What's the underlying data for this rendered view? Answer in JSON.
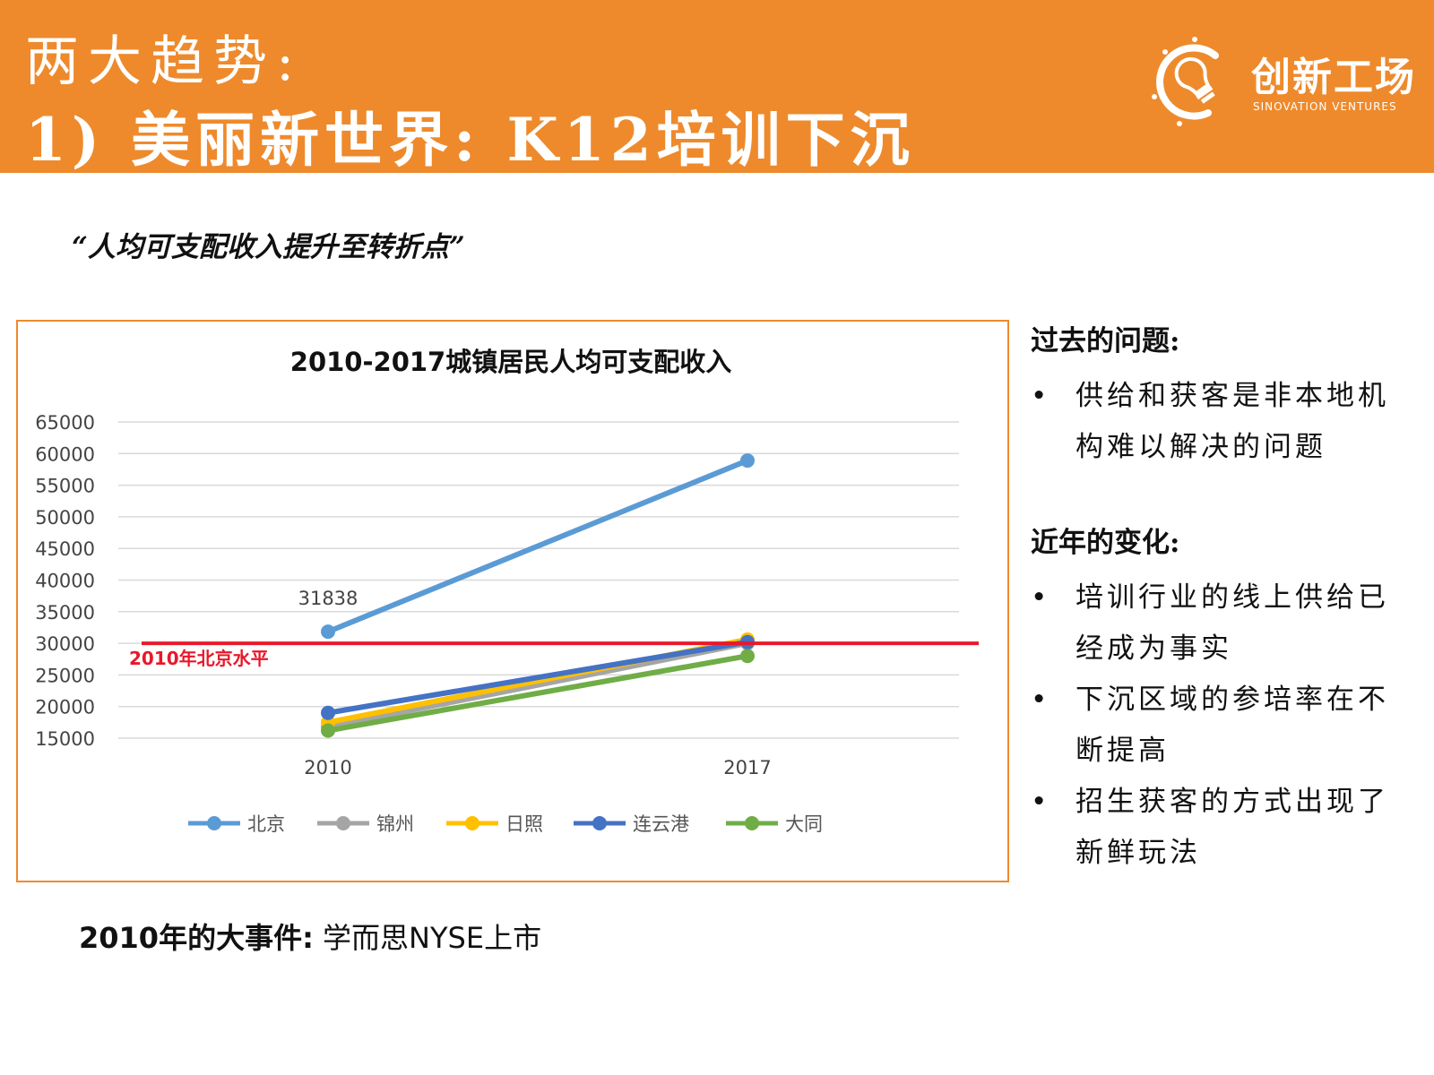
{
  "header": {
    "title_line1": "两大趋势:",
    "title_line2": "1) 美丽新世界: K12培训下沉",
    "logo_name": "创新工场",
    "logo_sub": "SINOVATION VENTURES",
    "logo_icon": "lightbulb-icon",
    "background_color": "#ee8a2c"
  },
  "quote": "“人均可支配收入提升至转折点”",
  "chart_data": {
    "type": "line",
    "title": "2010-2017城镇居民人均可支配收入",
    "categories": [
      "2010",
      "2017"
    ],
    "ylim": [
      15000,
      65000
    ],
    "yticks": [
      "65000",
      "60000",
      "55000",
      "50000",
      "45000",
      "40000",
      "35000",
      "30000",
      "25000",
      "20000",
      "15000"
    ],
    "grid": true,
    "legend_position": "bottom",
    "series": [
      {
        "name": "北京",
        "values": [
          31838,
          58900
        ],
        "color": "#5b9bd5"
      },
      {
        "name": "锦州",
        "values": [
          16800,
          30000
        ],
        "color": "#a5a5a5"
      },
      {
        "name": "日照",
        "values": [
          17500,
          30600
        ],
        "color": "#ffc000"
      },
      {
        "name": "连云港",
        "values": [
          19000,
          30200
        ],
        "color": "#4472c4"
      },
      {
        "name": "大同",
        "values": [
          16200,
          28000
        ],
        "color": "#70ad47"
      }
    ],
    "data_labels": [
      {
        "series": "北京",
        "category": "2010",
        "text": "31838"
      }
    ],
    "reference_line": {
      "label": "2010年北京水平",
      "value": 30000,
      "color": "#e8182a"
    }
  },
  "side": {
    "past_heading": "过去的问题:",
    "past_items": [
      "供给和获客是非本地机构难以解决的问题"
    ],
    "recent_heading": "近年的变化:",
    "recent_items": [
      "培训行业的线上供给已经成为事实",
      "下沉区域的参培率在不断提高",
      "招生获客的方式出现了新鲜玩法"
    ]
  },
  "footer": {
    "lead": "2010年的大事件:",
    "text": "学而思NYSE上市"
  }
}
